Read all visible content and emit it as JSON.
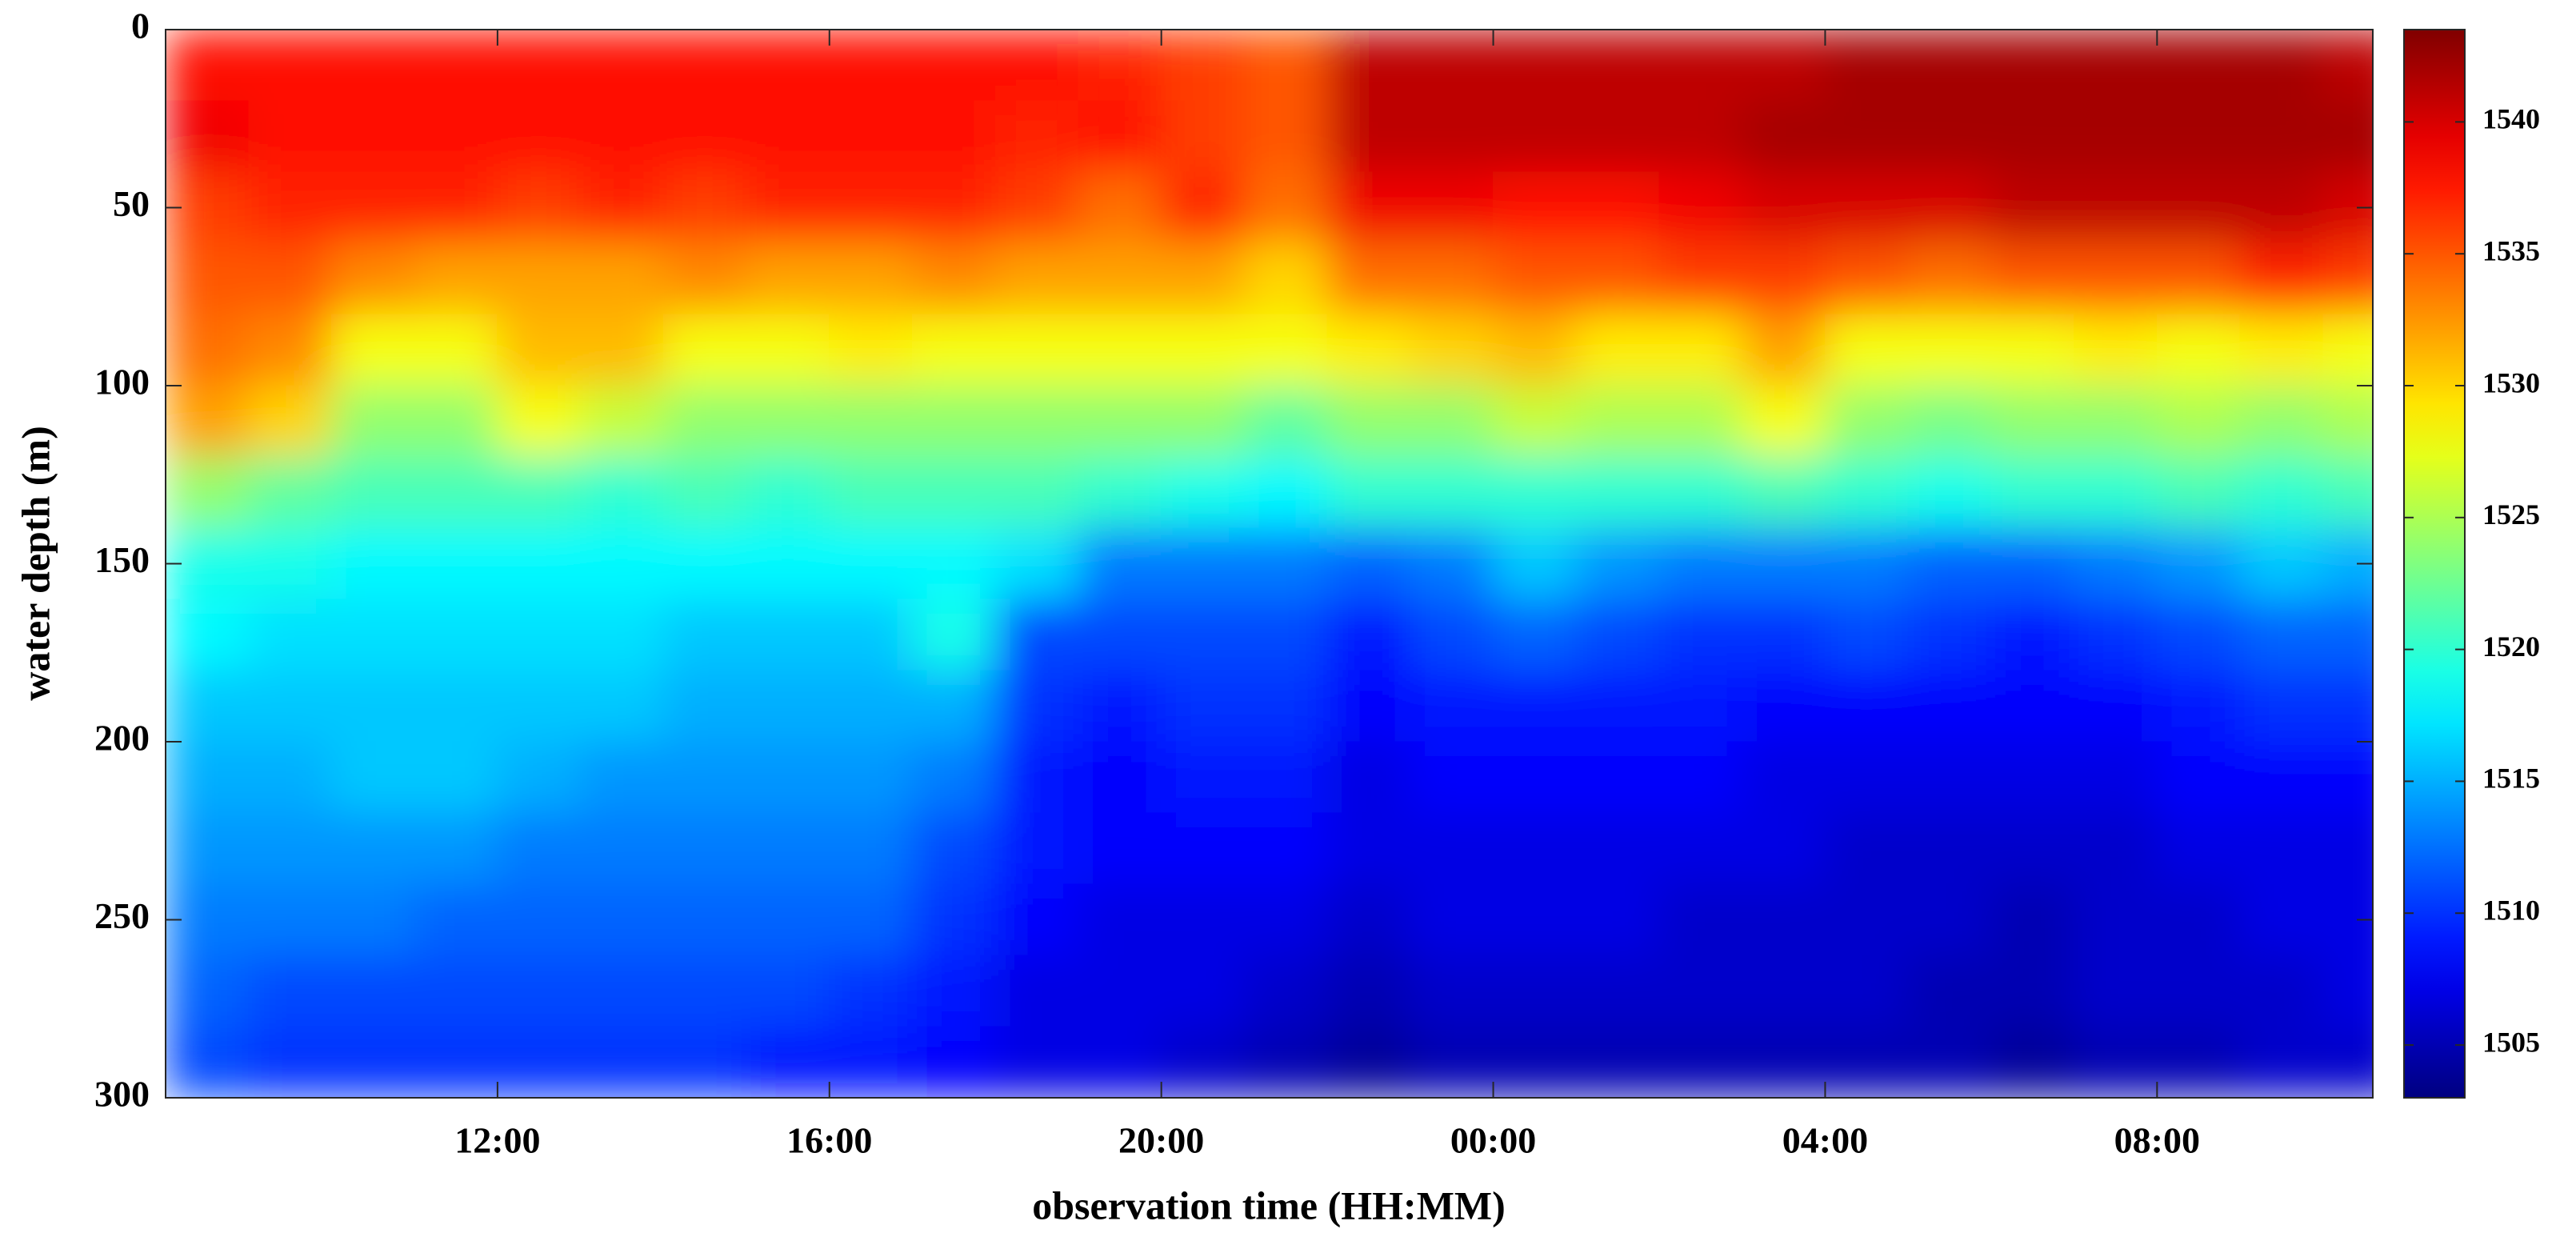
{
  "chart_data": {
    "type": "heatmap",
    "xlabel": "observation time (HH:MM)",
    "ylabel": "water depth (m)",
    "x": [
      8.5,
      9.5,
      10.5,
      11.5,
      12.5,
      13.5,
      14.5,
      15.5,
      16.5,
      17.5,
      18.5,
      19.5,
      20.5,
      21.5,
      22.5,
      23.5,
      24.5,
      25.5,
      26.5,
      27.5,
      28.5,
      29.5,
      30.5,
      31.5,
      32.5,
      33.5,
      34.5
    ],
    "y": [
      10,
      30,
      50,
      70,
      90,
      110,
      130,
      150,
      170,
      190,
      210,
      230,
      250,
      270,
      290
    ],
    "z": [
      [
        1538,
        1538,
        1538,
        1538,
        1538,
        1538,
        1538,
        1538,
        1538,
        1538,
        1538,
        1537,
        1536,
        1535,
        1541,
        1541,
        1541,
        1541,
        1541,
        1541,
        1542,
        1542,
        1542,
        1542,
        1542,
        1542,
        1541
      ],
      [
        1539,
        1538,
        1538,
        1538,
        1538,
        1538,
        1538,
        1538,
        1538,
        1538,
        1537,
        1538,
        1536,
        1535,
        1541,
        1541,
        1541,
        1541,
        1541,
        1542,
        1542,
        1542,
        1542,
        1542,
        1542,
        1542,
        1542
      ],
      [
        1536,
        1537,
        1537,
        1537,
        1536,
        1537,
        1536,
        1537,
        1537,
        1537,
        1536,
        1534,
        1537,
        1534,
        1539,
        1539,
        1538,
        1538,
        1539,
        1540,
        1540,
        1540,
        1541,
        1541,
        1541,
        1541,
        1540
      ],
      [
        1535,
        1535,
        1533,
        1532,
        1532,
        1532,
        1533,
        1532,
        1532,
        1533,
        1532,
        1532,
        1532,
        1530,
        1534,
        1534,
        1535,
        1535,
        1536,
        1536,
        1535,
        1534,
        1535,
        1535,
        1535,
        1537,
        1536
      ],
      [
        1534,
        1533,
        1528,
        1528,
        1531,
        1531,
        1528,
        1528,
        1529,
        1528,
        1528,
        1528,
        1528,
        1528,
        1529,
        1530,
        1531,
        1529,
        1529,
        1532,
        1528,
        1528,
        1528,
        1529,
        1528,
        1529,
        1528
      ],
      [
        1532,
        1530,
        1524,
        1524,
        1528,
        1526,
        1524,
        1524,
        1524,
        1524,
        1524,
        1524,
        1524,
        1522,
        1524,
        1524,
        1526,
        1525,
        1525,
        1528,
        1524,
        1523,
        1524,
        1524,
        1525,
        1524,
        1525
      ],
      [
        1524,
        1522,
        1521,
        1521,
        1521,
        1520,
        1521,
        1520,
        1521,
        1521,
        1521,
        1520,
        1519,
        1518,
        1520,
        1520,
        1520,
        1520,
        1520,
        1521,
        1520,
        1519,
        1520,
        1520,
        1521,
        1520,
        1521
      ],
      [
        1519,
        1519,
        1518,
        1518,
        1518,
        1518,
        1518,
        1518,
        1518,
        1518,
        1517,
        1513,
        1513,
        1513,
        1512,
        1513,
        1516,
        1514,
        1513,
        1513,
        1513,
        1512,
        1512,
        1513,
        1514,
        1516,
        1515
      ],
      [
        1518,
        1517,
        1517,
        1517,
        1517,
        1517,
        1516,
        1516,
        1516,
        1519,
        1511,
        1511,
        1511,
        1511,
        1509,
        1511,
        1512,
        1511,
        1510,
        1510,
        1511,
        1510,
        1509,
        1510,
        1511,
        1512,
        1512
      ],
      [
        1516,
        1516,
        1516,
        1516,
        1516,
        1516,
        1515,
        1515,
        1515,
        1515,
        1510,
        1509,
        1510,
        1510,
        1508,
        1509,
        1509,
        1509,
        1509,
        1508,
        1508,
        1508,
        1508,
        1508,
        1509,
        1510,
        1510
      ],
      [
        1515,
        1515,
        1516,
        1516,
        1515,
        1514,
        1514,
        1514,
        1514,
        1513,
        1509,
        1508,
        1509,
        1509,
        1507,
        1508,
        1508,
        1508,
        1508,
        1507,
        1507,
        1507,
        1507,
        1507,
        1508,
        1508,
        1508
      ],
      [
        1514,
        1514,
        1514,
        1514,
        1513,
        1513,
        1513,
        1513,
        1513,
        1511,
        1509,
        1508,
        1508,
        1508,
        1507,
        1507,
        1507,
        1507,
        1507,
        1507,
        1506,
        1506,
        1506,
        1506,
        1507,
        1507,
        1507
      ],
      [
        1513,
        1513,
        1513,
        1512,
        1512,
        1512,
        1512,
        1512,
        1512,
        1510,
        1508,
        1507,
        1507,
        1507,
        1506,
        1507,
        1507,
        1507,
        1506,
        1506,
        1506,
        1506,
        1505,
        1506,
        1506,
        1507,
        1507
      ],
      [
        1512,
        1511,
        1511,
        1511,
        1511,
        1511,
        1511,
        1511,
        1510,
        1509,
        1507,
        1507,
        1507,
        1506,
        1505,
        1506,
        1506,
        1506,
        1506,
        1506,
        1506,
        1505,
        1505,
        1506,
        1506,
        1506,
        1507
      ],
      [
        1511,
        1510,
        1510,
        1510,
        1510,
        1510,
        1510,
        1509,
        1509,
        1508,
        1507,
        1507,
        1506,
        1505,
        1504,
        1505,
        1505,
        1505,
        1505,
        1505,
        1505,
        1505,
        1504,
        1505,
        1505,
        1506,
        1506
      ]
    ],
    "xlim": [
      8,
      34.6
    ],
    "xticks": [
      {
        "value": 12,
        "label": "12:00"
      },
      {
        "value": 16,
        "label": "16:00"
      },
      {
        "value": 20,
        "label": "20:00"
      },
      {
        "value": 24,
        "label": "00:00"
      },
      {
        "value": 28,
        "label": "04:00"
      },
      {
        "value": 32,
        "label": "08:00"
      }
    ],
    "ylim": [
      0,
      300
    ],
    "y_reversed": true,
    "yticks": [
      0,
      50,
      100,
      150,
      200,
      250,
      300
    ],
    "colormap": "jet",
    "clim": [
      1503,
      1543.5
    ],
    "cticks": [
      1505,
      1510,
      1515,
      1520,
      1525,
      1530,
      1535,
      1540
    ]
  }
}
